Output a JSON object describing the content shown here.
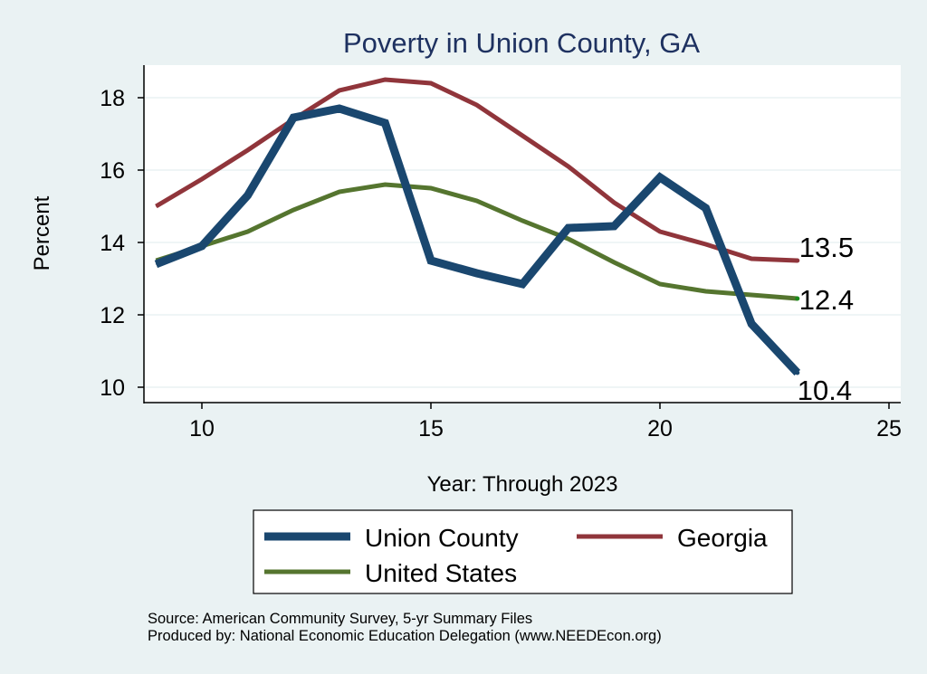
{
  "chart_data": {
    "type": "line",
    "title": "Poverty in Union County, GA",
    "xlabel": "Year: Through 2023",
    "ylabel": "Percent",
    "xlim": [
      8.7,
      25.3
    ],
    "ylim": [
      9.6,
      18.9
    ],
    "xticks": [
      10,
      15,
      20,
      25
    ],
    "yticks": [
      10,
      12,
      14,
      16,
      18
    ],
    "grid": true,
    "x": [
      9,
      10,
      11,
      12,
      13,
      14,
      15,
      16,
      17,
      18,
      19,
      20,
      21,
      22,
      23
    ],
    "series": [
      {
        "name": "Union County",
        "color": "#1a476f",
        "width": 9,
        "values": [
          13.4,
          13.9,
          15.3,
          17.45,
          17.7,
          17.3,
          13.5,
          13.15,
          12.85,
          14.4,
          14.45,
          15.8,
          14.95,
          11.75,
          10.4
        ],
        "end_label": "10.4"
      },
      {
        "name": "Georgia",
        "color": "#90353b",
        "width": 5,
        "values": [
          15.0,
          15.75,
          16.55,
          17.4,
          18.2,
          18.5,
          18.4,
          17.8,
          16.95,
          16.1,
          15.1,
          14.3,
          13.95,
          13.55,
          13.5
        ],
        "end_label": "13.5"
      },
      {
        "name": "United States",
        "color": "#55752f",
        "width": 5,
        "values": [
          13.5,
          13.9,
          14.3,
          14.9,
          15.4,
          15.6,
          15.5,
          15.15,
          14.6,
          14.1,
          13.45,
          12.85,
          12.65,
          12.55,
          12.45
        ],
        "end_label": "12.4"
      }
    ],
    "legend": {
      "placement": "bottom"
    },
    "notes": [
      "Source: American Community Survey, 5-yr Summary Files",
      "Produced by: National Economic Education Delegation (www.NEEDEcon.org)"
    ]
  }
}
